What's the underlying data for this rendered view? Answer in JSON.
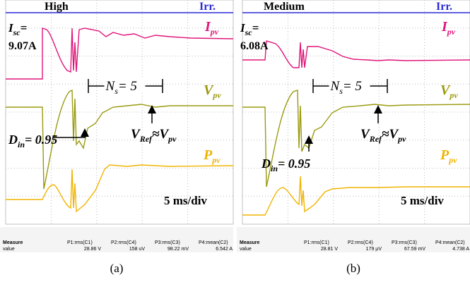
{
  "panels": [
    {
      "level": "High",
      "irr": "Irr.",
      "isc": {
        "symbol": "I",
        "sub": "sc",
        "eq": "=",
        "value": "9.07A"
      },
      "ipv": {
        "symbol": "I",
        "sub": "pv"
      },
      "vpv": {
        "symbol": "V",
        "sub": "pv"
      },
      "ns": {
        "symbol": "N",
        "sub": "s",
        "eq": "= 5"
      },
      "vref": {
        "a": "V",
        "a_sub": "Ref",
        "approx": "≈",
        "b": "V",
        "b_sub": "pv"
      },
      "din": {
        "symbol": "D",
        "sub": "in",
        "eq": "= 0.95"
      },
      "ppv": {
        "symbol": "P",
        "sub": "pv"
      },
      "scale": "5 ms/div",
      "measure": {
        "labels": [
          "Measure",
          "value"
        ],
        "params": [
          {
            "name": "P1:rms(C1)",
            "value": "28.86 V"
          },
          {
            "name": "P2:rms(C4)",
            "value": "158 uV"
          },
          {
            "name": "P3:rms(C3)",
            "value": "98.22 mV"
          },
          {
            "name": "P4:mean(C2)",
            "value": "6.542 A"
          }
        ]
      },
      "caption": "(a)"
    },
    {
      "level": "Medium",
      "irr": "Irr.",
      "isc": {
        "symbol": "I",
        "sub": "sc",
        "eq": "=",
        "value": "6.08A"
      },
      "ipv": {
        "symbol": "I",
        "sub": "pv"
      },
      "vpv": {
        "symbol": "V",
        "sub": "pv"
      },
      "ns": {
        "symbol": "N",
        "sub": "s",
        "eq": "= 5"
      },
      "vref": {
        "a": "V",
        "a_sub": "Ref",
        "approx": "≈",
        "b": "V",
        "b_sub": "pv"
      },
      "din": {
        "symbol": "D",
        "sub": "in",
        "eq": "= 0.95"
      },
      "ppv": {
        "symbol": "P",
        "sub": "pv"
      },
      "scale": "5 ms/div",
      "measure": {
        "labels": [
          "Measure",
          "value"
        ],
        "params": [
          {
            "name": "P1:rms(C1)",
            "value": "28.81 V"
          },
          {
            "name": "P2:rms(C4)",
            "value": "179 µV"
          },
          {
            "name": "P3:rms(C3)",
            "value": "67.59 mV"
          },
          {
            "name": "P4:mean(C2)",
            "value": "4.738 A"
          }
        ]
      },
      "caption": "(b)"
    }
  ]
}
